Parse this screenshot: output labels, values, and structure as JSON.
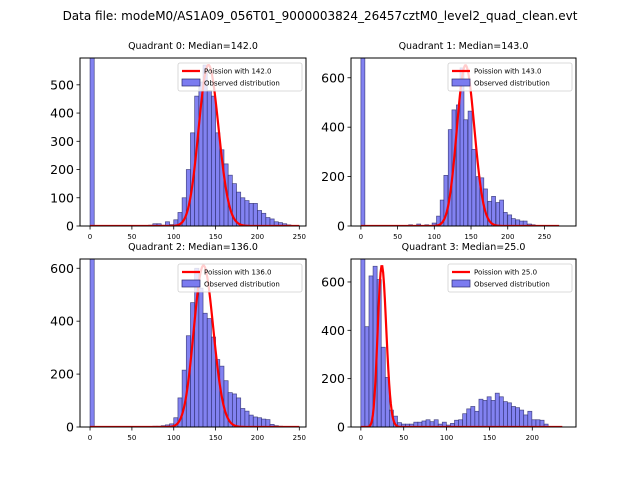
{
  "figure": {
    "suptitle": "Data file: modeM0/AS1A09_056T01_9000003824_26457cztM0_level2_quad_clean.evt"
  },
  "colors": {
    "bar_fill": "#7b7bf0",
    "bar_edge": "#2b2b6b",
    "poisson_line": "#ff0000"
  },
  "chart_data": [
    {
      "type": "bar",
      "title": "Quadrant 0: Median=142.0",
      "xlabel": "",
      "ylabel": "",
      "xlim": [
        -12,
        258
      ],
      "ylim": [
        0,
        595
      ],
      "xticks": [
        0,
        50,
        100,
        150,
        200,
        250
      ],
      "yticks": [
        0,
        100,
        200,
        300,
        400,
        500
      ],
      "legend": {
        "position": "top-right",
        "entries": [
          "Poission with 142.0",
          "Observed distribution"
        ]
      },
      "bin_width": 5,
      "observed": {
        "bin_starts": [
          0,
          65,
          70,
          75,
          80,
          85,
          90,
          95,
          100,
          105,
          110,
          115,
          120,
          125,
          130,
          135,
          140,
          145,
          150,
          155,
          160,
          165,
          170,
          175,
          180,
          185,
          190,
          195,
          200,
          205,
          210,
          215,
          220,
          225,
          230,
          235,
          240
        ],
        "values": [
          600,
          2,
          3,
          8,
          8,
          3,
          15,
          5,
          22,
          48,
          100,
          200,
          330,
          460,
          510,
          570,
          480,
          460,
          330,
          270,
          220,
          180,
          150,
          120,
          100,
          90,
          80,
          80,
          55,
          45,
          30,
          25,
          15,
          12,
          8,
          4,
          1
        ]
      },
      "poisson": {
        "lambda": 142.0,
        "x_range": [
          0,
          250
        ],
        "peak": 570
      }
    },
    {
      "type": "bar",
      "title": "Quadrant 1: Median=143.0",
      "xlabel": "",
      "ylabel": "",
      "xlim": [
        -13.5,
        293
      ],
      "ylim": [
        0,
        680
      ],
      "xticks": [
        0,
        50,
        100,
        150,
        200,
        250
      ],
      "yticks": [
        0,
        200,
        400,
        600
      ],
      "legend": {
        "position": "top-right",
        "entries": [
          "Poission with 143.0",
          "Observed distribution"
        ]
      },
      "bin_width": 5.4,
      "observed": {
        "bin_starts": [
          0,
          65,
          76,
          87,
          97,
          103,
          108,
          113,
          119,
          124,
          130,
          135,
          140,
          146,
          151,
          157,
          162,
          167,
          173,
          178,
          184,
          189,
          194,
          200,
          205,
          211,
          216,
          221,
          227,
          232
        ],
        "values": [
          700,
          5,
          8,
          5,
          12,
          40,
          105,
          205,
          390,
          470,
          490,
          640,
          430,
          465,
          310,
          200,
          195,
          150,
          100,
          120,
          95,
          105,
          55,
          45,
          30,
          25,
          20,
          20,
          8,
          5
        ]
      },
      "poisson": {
        "lambda": 143.0,
        "x_range": [
          0,
          270
        ],
        "peak": 650
      }
    },
    {
      "type": "bar",
      "title": "Quadrant 2: Median=136.0",
      "xlabel": "",
      "ylabel": "",
      "xlim": [
        -12,
        258
      ],
      "ylim": [
        0,
        635
      ],
      "xticks": [
        0,
        50,
        100,
        150,
        200,
        250
      ],
      "yticks": [
        0,
        200,
        400,
        600
      ],
      "legend": {
        "position": "top-right",
        "entries": [
          "Poission with 136.0",
          "Observed distribution"
        ]
      },
      "bin_width": 5,
      "observed": {
        "bin_starts": [
          0,
          75,
          80,
          85,
          90,
          95,
          100,
          105,
          110,
          115,
          120,
          125,
          130,
          135,
          140,
          145,
          150,
          155,
          160,
          165,
          170,
          175,
          180,
          185,
          190,
          195,
          200,
          205,
          210,
          215,
          220,
          225
        ],
        "values": [
          640,
          3,
          3,
          5,
          8,
          12,
          35,
          110,
          215,
          345,
          470,
          600,
          525,
          430,
          410,
          340,
          255,
          230,
          175,
          130,
          125,
          110,
          70,
          60,
          45,
          38,
          35,
          30,
          28,
          10,
          5,
          3
        ]
      },
      "poisson": {
        "lambda": 136.0,
        "x_range": [
          0,
          250
        ],
        "peak": 610
      }
    },
    {
      "type": "bar",
      "title": "Quadrant 3: Median=25.0",
      "xlabel": "",
      "ylabel": "",
      "xlim": [
        -11.5,
        251
      ],
      "ylim": [
        0,
        695
      ],
      "xticks": [
        0,
        50,
        100,
        150,
        200
      ],
      "yticks": [
        0,
        200,
        400,
        600
      ],
      "legend": {
        "position": "top-right",
        "entries": [
          "Poission with 25.0",
          "Observed distribution"
        ]
      },
      "bin_width": 4.75,
      "observed": {
        "bin_starts": [
          0,
          4.75,
          9.5,
          14.25,
          19,
          23.75,
          28.5,
          33.25,
          38,
          42.75,
          47.5,
          52.25,
          57,
          61.75,
          66.5,
          71.25,
          76,
          80.75,
          85.5,
          90.25,
          95,
          99.75,
          104.5,
          109.25,
          114,
          118.75,
          123.5,
          128.25,
          133,
          137.75,
          142.5,
          147.25,
          152,
          156.75,
          161.5,
          166.25,
          171,
          175.75,
          180.5,
          185.25,
          190,
          194.75,
          199.5,
          204.25,
          209,
          213.75
        ],
        "values": [
          700,
          415,
          625,
          665,
          610,
          330,
          205,
          70,
          45,
          18,
          12,
          12,
          12,
          20,
          20,
          25,
          30,
          22,
          30,
          12,
          20,
          8,
          15,
          28,
          30,
          55,
          75,
          85,
          65,
          115,
          110,
          125,
          110,
          140,
          125,
          105,
          100,
          85,
          80,
          70,
          50,
          65,
          30,
          30,
          28,
          12
        ]
      },
      "poisson": {
        "lambda": 25.0,
        "x_range": [
          0,
          235
        ],
        "peak": 665
      }
    }
  ]
}
